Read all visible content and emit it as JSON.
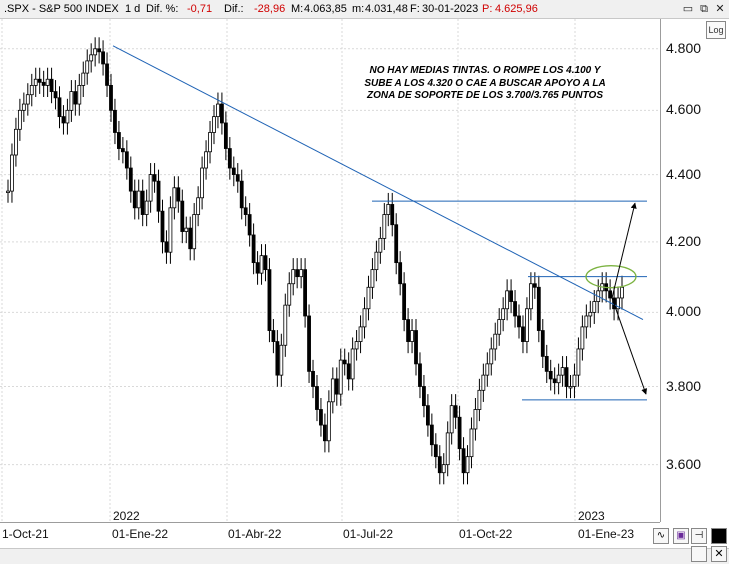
{
  "header": {
    "symbol": ".SPX - S&P 500 INDEX",
    "interval": "1 d",
    "dif_pct_label": "Dif. %:",
    "dif_pct_value": "-0,71",
    "dif_label": "Dif.:",
    "dif_value": "-28,96",
    "max_label": "M:",
    "max_value": "4.063,85",
    "min_label": "m:",
    "min_value": "4.031,48",
    "date_label": "F:",
    "date_value": "30-01-2023",
    "price_label": "P:",
    "price_value": "4.625,96"
  },
  "window_controls": {
    "minimize": "▭",
    "restore": "⧉",
    "close": "✕"
  },
  "log_button": "Log",
  "annotation": "NO HAY MEDIAS TINTAS. O ROMPE LOS 4.100 Y SUBE A LOS 4.320 O CAE A BUSCAR APOYO A LA ZONA DE SOPORTE DE LOS 3.700/3.765 PUNTOS",
  "colors": {
    "candles": "#000000",
    "trendline": "#1f63b5",
    "support": "#1f63b5",
    "ellipse": "#7cb342",
    "negative": "#d00000"
  },
  "chart_data": {
    "type": "line",
    "series": [
      {
        "values": [
          4350,
          4460,
          4540,
          4600,
          4620,
          4650,
          4680,
          4700,
          4690,
          4680,
          4700,
          4660,
          4640,
          4580,
          4560,
          4600,
          4660,
          4620,
          4680,
          4720,
          4760,
          4780,
          4800,
          4790,
          4750,
          4680,
          4600,
          4530,
          4480,
          4470,
          4420,
          4350,
          4300,
          4350,
          4280,
          4320,
          4400,
          4380,
          4290,
          4200,
          4170,
          4300,
          4360,
          4320,
          4230,
          4240,
          4180,
          4280,
          4330,
          4420,
          4470,
          4530,
          4580,
          4620,
          4560,
          4480,
          4420,
          4400,
          4380,
          4300,
          4280,
          4220,
          4140,
          4110,
          4160,
          4120,
          3950,
          3920,
          3830,
          3910,
          4020,
          4080,
          4120,
          4100,
          4120,
          3990,
          3840,
          3800,
          3740,
          3700,
          3660,
          3760,
          3820,
          3780,
          3870,
          3860,
          3820,
          3900,
          3920,
          3960,
          4010,
          4070,
          4120,
          4170,
          4210,
          4280,
          4310,
          4250,
          4140,
          4080,
          3980,
          3920,
          3950,
          3860,
          3800,
          3750,
          3700,
          3650,
          3620,
          3580,
          3600,
          3680,
          3750,
          3720,
          3640,
          3580,
          3620,
          3690,
          3740,
          3790,
          3830,
          3860,
          3900,
          3940,
          3980,
          4010,
          4060,
          4030,
          3990,
          3960,
          3920,
          4010,
          4080,
          4070,
          3950,
          3880,
          3840,
          3820,
          3810,
          3830,
          3850,
          3800,
          3800,
          3830,
          3900,
          3960,
          3990,
          4000,
          4030,
          4060,
          4080,
          4060,
          4040,
          4010,
          4040,
          4070
        ]
      }
    ],
    "x_tick_labels": [
      "1-Oct-21",
      "01-Ene-22",
      "01-Abr-22",
      "01-Jul-22",
      "01-Oct-22",
      "01-Ene-23"
    ],
    "year_labels": [
      "2022",
      "2023"
    ],
    "y_tick_labels": [
      "4.800",
      "4.600",
      "4.400",
      "4.200",
      "4.000",
      "3.800",
      "3.600"
    ],
    "y_ticks": [
      4800,
      4600,
      4400,
      4200,
      4000,
      3800,
      3600
    ],
    "ylim": [
      3460,
      4900
    ],
    "y_scale": "log",
    "grid": true,
    "annotations": {
      "trendline": {
        "from": [
          "01-Ene-22",
          4810
        ],
        "to": [
          "01-Feb-23",
          3980
        ]
      },
      "resistance_level": 4320,
      "breakout_level": 4100,
      "support_level": 3765,
      "target_up": 4320,
      "target_down": 3770
    }
  }
}
